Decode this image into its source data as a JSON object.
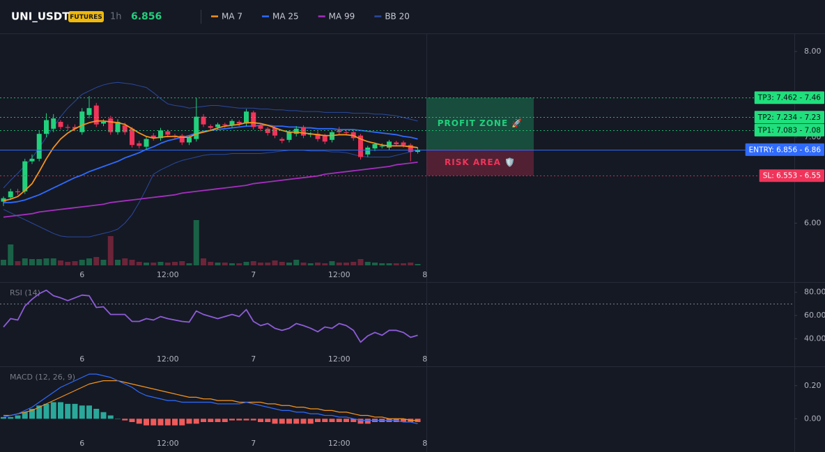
{
  "chart_data": [
    {
      "type": "candlestick",
      "title": "UNI_USDT",
      "badge": "FUTURES",
      "interval": "1h",
      "last_price": 6.856,
      "categories": [
        null,
        null,
        null,
        null,
        null,
        null,
        null,
        null,
        null,
        null,
        null,
        "6",
        null,
        null,
        null,
        null,
        null,
        null,
        null,
        null,
        null,
        null,
        null,
        "12:00",
        null,
        null,
        null,
        null,
        null,
        null,
        null,
        null,
        null,
        null,
        null,
        "7",
        null,
        null,
        null,
        null,
        null,
        null,
        null,
        null,
        null,
        null,
        null,
        "12:00",
        null,
        null,
        null,
        null,
        null,
        null,
        null,
        null,
        null,
        null,
        null,
        "8"
      ],
      "open": [
        6.25,
        6.3,
        6.37,
        6.37,
        6.72,
        6.75,
        7.04,
        7.1,
        7.18,
        7.12,
        7.12,
        7.06,
        7.26,
        7.37,
        7.16,
        7.22,
        7.06,
        7.14,
        7.1,
        6.93,
        6.89,
        7.02,
        6.99,
        7.07,
        7.02,
        7.02,
        6.94,
        6.98,
        7.24,
        7.13,
        7.12,
        7.15,
        7.14,
        7.18,
        7.16,
        7.29,
        7.14,
        7.1,
        7.11,
        6.98,
        6.97,
        7.04,
        7.12,
        7.03,
        7.04,
        7.02,
        6.97,
        7.08,
        7.06,
        7.06,
        7.02,
        6.8,
        6.87,
        6.9,
        6.88,
        6.94,
        6.94,
        6.91,
        6.83,
        null
      ],
      "high": [
        6.31,
        6.4,
        6.4,
        6.75,
        6.8,
        7.08,
        7.28,
        7.27,
        7.2,
        7.15,
        7.15,
        7.34,
        7.48,
        7.4,
        7.21,
        7.25,
        7.21,
        7.17,
        7.12,
        6.96,
        7.01,
        7.05,
        7.11,
        7.09,
        7.04,
        7.04,
        7.02,
        7.46,
        7.27,
        7.15,
        7.17,
        7.17,
        7.21,
        7.2,
        7.33,
        7.31,
        7.16,
        7.12,
        7.13,
        7.0,
        7.08,
        7.13,
        7.14,
        7.06,
        7.07,
        7.04,
        7.08,
        7.12,
        7.08,
        7.08,
        7.04,
        6.9,
        6.94,
        6.93,
        6.97,
        6.96,
        6.96,
        6.93,
        6.88,
        null
      ],
      "low": [
        6.2,
        6.27,
        6.33,
        6.34,
        6.69,
        6.72,
        7.0,
        7.06,
        7.09,
        7.08,
        7.07,
        7.03,
        7.22,
        7.12,
        7.13,
        7.03,
        7.03,
        7.03,
        6.88,
        6.87,
        6.86,
        6.96,
        6.96,
        7.0,
        6.98,
        6.91,
        6.91,
        6.95,
        7.12,
        7.08,
        7.09,
        7.11,
        7.11,
        7.13,
        7.13,
        7.09,
        7.07,
        7.02,
        6.99,
        6.93,
        6.94,
        7.01,
        6.99,
        7.0,
        6.95,
        6.92,
        6.94,
        7.03,
        7.02,
        6.96,
        6.74,
        6.77,
        6.84,
        6.87,
        6.85,
        6.9,
        6.88,
        6.72,
        6.81,
        null
      ],
      "close": [
        6.29,
        6.37,
        6.36,
        6.72,
        6.75,
        7.04,
        7.2,
        7.22,
        7.12,
        7.11,
        7.1,
        7.3,
        7.34,
        7.15,
        7.18,
        7.06,
        7.18,
        7.06,
        6.91,
        6.9,
        6.98,
        6.99,
        7.08,
        7.03,
        7.01,
        6.94,
        7.0,
        7.24,
        7.15,
        7.11,
        7.15,
        7.14,
        7.19,
        7.16,
        7.3,
        7.12,
        7.1,
        7.05,
        7.02,
        6.96,
        7.06,
        7.1,
        7.02,
        7.04,
        6.98,
        6.95,
        7.06,
        7.06,
        7.05,
        6.99,
        6.77,
        6.88,
        6.92,
        6.9,
        6.95,
        6.92,
        6.91,
        6.83,
        6.856,
        null
      ],
      "up_color": "#22d07c",
      "down_color": "#f0345a",
      "volume": [
        8,
        30,
        6,
        10,
        9,
        9,
        10,
        10,
        7,
        5,
        6,
        8,
        10,
        12,
        8,
        42,
        8,
        10,
        8,
        5,
        4,
        4,
        5,
        4,
        5,
        6,
        3,
        65,
        10,
        5,
        4,
        4,
        3,
        3,
        5,
        6,
        4,
        4,
        7,
        5,
        4,
        8,
        4,
        3,
        4,
        3,
        6,
        4,
        4,
        5,
        9,
        5,
        4,
        3,
        3,
        3,
        3,
        4,
        2,
        null
      ],
      "volume_lim": [
        0,
        100
      ],
      "series": [
        {
          "name": "MA 7",
          "color": "#f7931a",
          "values": [
            6.26,
            6.28,
            6.31,
            6.38,
            6.46,
            6.6,
            6.75,
            6.88,
            6.98,
            7.05,
            7.1,
            7.14,
            7.17,
            7.19,
            7.19,
            7.18,
            7.17,
            7.15,
            7.1,
            7.05,
            7.01,
            6.99,
            7.0,
            7.01,
            7.01,
            7.0,
            7.0,
            7.04,
            7.06,
            7.08,
            7.11,
            7.13,
            7.14,
            7.15,
            7.17,
            7.17,
            7.16,
            7.14,
            7.11,
            7.08,
            7.06,
            7.06,
            7.05,
            7.04,
            7.03,
            7.02,
            7.02,
            7.03,
            7.03,
            7.02,
            6.98,
            6.95,
            6.93,
            6.91,
            6.9,
            6.9,
            6.9,
            6.89,
            6.88,
            null
          ]
        },
        {
          "name": "MA 25",
          "color": "#2f6bff",
          "values": [
            6.24,
            6.24,
            6.25,
            6.27,
            6.3,
            6.33,
            6.37,
            6.41,
            6.45,
            6.49,
            6.53,
            6.56,
            6.6,
            6.63,
            6.66,
            6.69,
            6.72,
            6.76,
            6.79,
            6.82,
            6.86,
            6.89,
            6.93,
            6.96,
            6.98,
            7.0,
            7.02,
            7.05,
            7.07,
            7.08,
            7.09,
            7.1,
            7.11,
            7.12,
            7.13,
            7.13,
            7.14,
            7.14,
            7.13,
            7.13,
            7.12,
            7.12,
            7.11,
            7.11,
            7.1,
            7.1,
            7.1,
            7.09,
            7.09,
            7.09,
            7.08,
            7.07,
            7.06,
            7.05,
            7.04,
            7.03,
            7.01,
            7.0,
            6.98,
            null
          ]
        },
        {
          "name": "MA 99",
          "color": "#a62fc0",
          "values": [
            6.07,
            6.08,
            6.09,
            6.1,
            6.11,
            6.13,
            6.14,
            6.15,
            6.16,
            6.17,
            6.18,
            6.19,
            6.2,
            6.21,
            6.22,
            6.24,
            6.25,
            6.26,
            6.27,
            6.28,
            6.29,
            6.3,
            6.31,
            6.32,
            6.33,
            6.35,
            6.36,
            6.37,
            6.38,
            6.39,
            6.4,
            6.41,
            6.42,
            6.43,
            6.44,
            6.46,
            6.47,
            6.48,
            6.49,
            6.5,
            6.51,
            6.52,
            6.53,
            6.54,
            6.55,
            6.57,
            6.58,
            6.59,
            6.6,
            6.61,
            6.62,
            6.63,
            6.64,
            6.65,
            6.66,
            6.68,
            6.69,
            6.7,
            6.71,
            null
          ]
        },
        {
          "name": "BB 20",
          "color": "#2a4a9e",
          "upper": [
            6.41,
            6.5,
            6.58,
            6.67,
            6.76,
            6.88,
            7.0,
            7.12,
            7.24,
            7.34,
            7.42,
            7.5,
            7.54,
            7.58,
            7.61,
            7.63,
            7.64,
            7.63,
            7.62,
            7.6,
            7.58,
            7.52,
            7.45,
            7.39,
            7.37,
            7.36,
            7.34,
            7.35,
            7.36,
            7.37,
            7.37,
            7.36,
            7.35,
            7.34,
            7.34,
            7.34,
            7.33,
            7.33,
            7.32,
            7.32,
            7.31,
            7.31,
            7.3,
            7.3,
            7.3,
            7.29,
            7.29,
            7.29,
            7.29,
            7.28,
            7.28,
            7.28,
            7.27,
            7.27,
            7.26,
            7.25,
            7.23,
            7.21,
            7.19,
            null
          ],
          "lower": [
            6.16,
            6.12,
            6.08,
            6.04,
            6.0,
            5.96,
            5.92,
            5.88,
            5.85,
            5.84,
            5.84,
            5.84,
            5.84,
            5.86,
            5.88,
            5.9,
            5.93,
            6.0,
            6.1,
            6.24,
            6.4,
            6.57,
            6.62,
            6.66,
            6.7,
            6.73,
            6.75,
            6.77,
            6.79,
            6.8,
            6.8,
            6.8,
            6.81,
            6.81,
            6.81,
            6.81,
            6.81,
            6.82,
            6.83,
            6.84,
            6.85,
            6.85,
            6.85,
            6.84,
            6.84,
            6.84,
            6.83,
            6.83,
            6.82,
            6.8,
            6.78,
            6.77,
            6.77,
            6.77,
            6.77,
            6.79,
            6.81,
            6.83,
            6.85,
            null
          ]
        }
      ],
      "ylim": [
        5.5,
        8.21
      ],
      "yticks": [
        {
          "value": 6,
          "label": "6.00"
        },
        {
          "value": 7,
          "label": "7.00"
        },
        {
          "value": 8,
          "label": "8.00"
        }
      ],
      "grid": false,
      "zones": [
        {
          "label": "PROFIT ZONE 🚀",
          "from": 6.856,
          "to": 7.462,
          "color": "#1fd07c"
        },
        {
          "label": "RISK AREA 🛡️",
          "from": 6.553,
          "to": 6.856,
          "color": "#f0345a"
        }
      ],
      "levels": [
        {
          "label": "TP3: 7.462 - 7.46",
          "value": 7.462,
          "color": "#1fe07c",
          "text_color": "#0b0e14",
          "dash": true
        },
        {
          "label": "TP2: 7.234 - 7.23",
          "value": 7.234,
          "color": "#1fe07c",
          "text_color": "#0b0e14",
          "dash": true
        },
        {
          "label": "TP1: 7.083 - 7.08",
          "value": 7.083,
          "color": "#1fe07c",
          "text_color": "#0b0e14",
          "dash": true
        },
        {
          "label": "ENTRY: 6.856 - 6.86",
          "value": 6.856,
          "color": "#2f6bff",
          "text_color": "#ffffff",
          "dash": false
        },
        {
          "label": "SL: 6.553 - 6.55",
          "value": 6.553,
          "color": "#f0345a",
          "text_color": "#ffffff",
          "dash": true
        }
      ]
    },
    {
      "type": "line",
      "title": "RSI (14)",
      "categories": [
        null,
        null,
        null,
        null,
        null,
        null,
        null,
        null,
        null,
        null,
        null,
        "6",
        null,
        null,
        null,
        null,
        null,
        null,
        null,
        null,
        null,
        null,
        null,
        "12:00",
        null,
        null,
        null,
        null,
        null,
        null,
        null,
        null,
        null,
        null,
        null,
        "7",
        null,
        null,
        null,
        null,
        null,
        null,
        null,
        null,
        null,
        null,
        null,
        "12:00",
        null,
        null,
        null,
        null,
        null,
        null,
        null,
        null,
        null,
        null,
        null,
        "8"
      ],
      "color": "#8e5cd9",
      "values": [
        50.1,
        57.3,
        56.1,
        68.1,
        74.0,
        78.8,
        81.8,
        77.0,
        75.2,
        72.8,
        75.2,
        77.6,
        77.0,
        66.9,
        67.5,
        60.9,
        60.9,
        60.9,
        54.9,
        54.9,
        57.3,
        56.1,
        59.1,
        57.3,
        56.1,
        54.9,
        54.3,
        63.9,
        60.9,
        59.1,
        57.3,
        59.1,
        60.9,
        59.1,
        65.1,
        54.9,
        51.3,
        53.1,
        49.0,
        47.2,
        49.0,
        53.1,
        51.3,
        49.0,
        46.0,
        50.1,
        49.0,
        53.1,
        51.3,
        47.2,
        37.0,
        42.4,
        45.4,
        43.0,
        47.2,
        47.2,
        45.4,
        41.2,
        43.0,
        null
      ],
      "overbought": 70,
      "ylim": [
        30,
        87
      ],
      "yticks": [
        {
          "value": 80,
          "label": "80.00"
        },
        {
          "value": 60,
          "label": "60.00"
        },
        {
          "value": 40,
          "label": "40.00"
        }
      ],
      "grid": false
    },
    {
      "type": "macd",
      "title": "MACD (12, 26, 9)",
      "categories": [
        null,
        null,
        null,
        null,
        null,
        null,
        null,
        null,
        null,
        null,
        null,
        "6",
        null,
        null,
        null,
        null,
        null,
        null,
        null,
        null,
        null,
        null,
        null,
        "12:00",
        null,
        null,
        null,
        null,
        null,
        null,
        null,
        null,
        null,
        null,
        null,
        "7",
        null,
        null,
        null,
        null,
        null,
        null,
        null,
        null,
        null,
        null,
        null,
        "12:00",
        null,
        null,
        null,
        null,
        null,
        null,
        null,
        null,
        null,
        null,
        null,
        "8"
      ],
      "macd": {
        "color": "#2f6bff",
        "values": [
          0.01,
          0.02,
          0.03,
          0.05,
          0.07,
          0.1,
          0.13,
          0.16,
          0.19,
          0.21,
          0.23,
          0.25,
          0.27,
          0.27,
          0.26,
          0.25,
          0.23,
          0.21,
          0.19,
          0.16,
          0.14,
          0.13,
          0.12,
          0.11,
          0.11,
          0.1,
          0.1,
          0.1,
          0.1,
          0.1,
          0.09,
          0.09,
          0.09,
          0.09,
          0.1,
          0.09,
          0.08,
          0.07,
          0.06,
          0.05,
          0.05,
          0.04,
          0.04,
          0.03,
          0.03,
          0.02,
          0.02,
          0.01,
          0.01,
          0.0,
          -0.01,
          -0.01,
          -0.01,
          -0.01,
          -0.01,
          -0.01,
          -0.02,
          -0.02,
          -0.03,
          null
        ]
      },
      "signal": {
        "color": "#f7931a",
        "values": [
          0.02,
          0.02,
          0.03,
          0.04,
          0.05,
          0.07,
          0.09,
          0.11,
          0.13,
          0.15,
          0.17,
          0.19,
          0.21,
          0.22,
          0.23,
          0.23,
          0.23,
          0.22,
          0.21,
          0.2,
          0.19,
          0.18,
          0.17,
          0.16,
          0.15,
          0.14,
          0.13,
          0.13,
          0.12,
          0.12,
          0.11,
          0.11,
          0.11,
          0.1,
          0.1,
          0.1,
          0.1,
          0.09,
          0.09,
          0.08,
          0.08,
          0.07,
          0.07,
          0.06,
          0.06,
          0.05,
          0.05,
          0.04,
          0.04,
          0.03,
          0.02,
          0.02,
          0.01,
          0.01,
          0.0,
          0.0,
          0.0,
          -0.01,
          -0.01,
          null
        ]
      },
      "histogram": {
        "up_color": "#2aa89a",
        "down_color": "#ef5a5a",
        "values": [
          0.01,
          0.01,
          0.02,
          0.04,
          0.06,
          0.08,
          0.09,
          0.1,
          0.1,
          0.09,
          0.09,
          0.08,
          0.08,
          0.06,
          0.04,
          0.02,
          0.0,
          -0.01,
          -0.02,
          -0.03,
          -0.04,
          -0.04,
          -0.04,
          -0.04,
          -0.04,
          -0.04,
          -0.03,
          -0.03,
          -0.02,
          -0.02,
          -0.02,
          -0.02,
          -0.01,
          -0.01,
          -0.01,
          -0.01,
          -0.02,
          -0.02,
          -0.03,
          -0.03,
          -0.03,
          -0.03,
          -0.03,
          -0.03,
          -0.02,
          -0.02,
          -0.02,
          -0.02,
          -0.02,
          -0.02,
          -0.03,
          -0.03,
          -0.02,
          -0.02,
          -0.02,
          -0.02,
          -0.02,
          -0.02,
          -0.02,
          null
        ]
      },
      "ylim": [
        -0.1,
        0.3
      ],
      "yticks": [
        {
          "value": 0.2,
          "label": "0.20"
        },
        {
          "value": 0,
          "label": "0.00"
        }
      ],
      "grid": false
    }
  ]
}
